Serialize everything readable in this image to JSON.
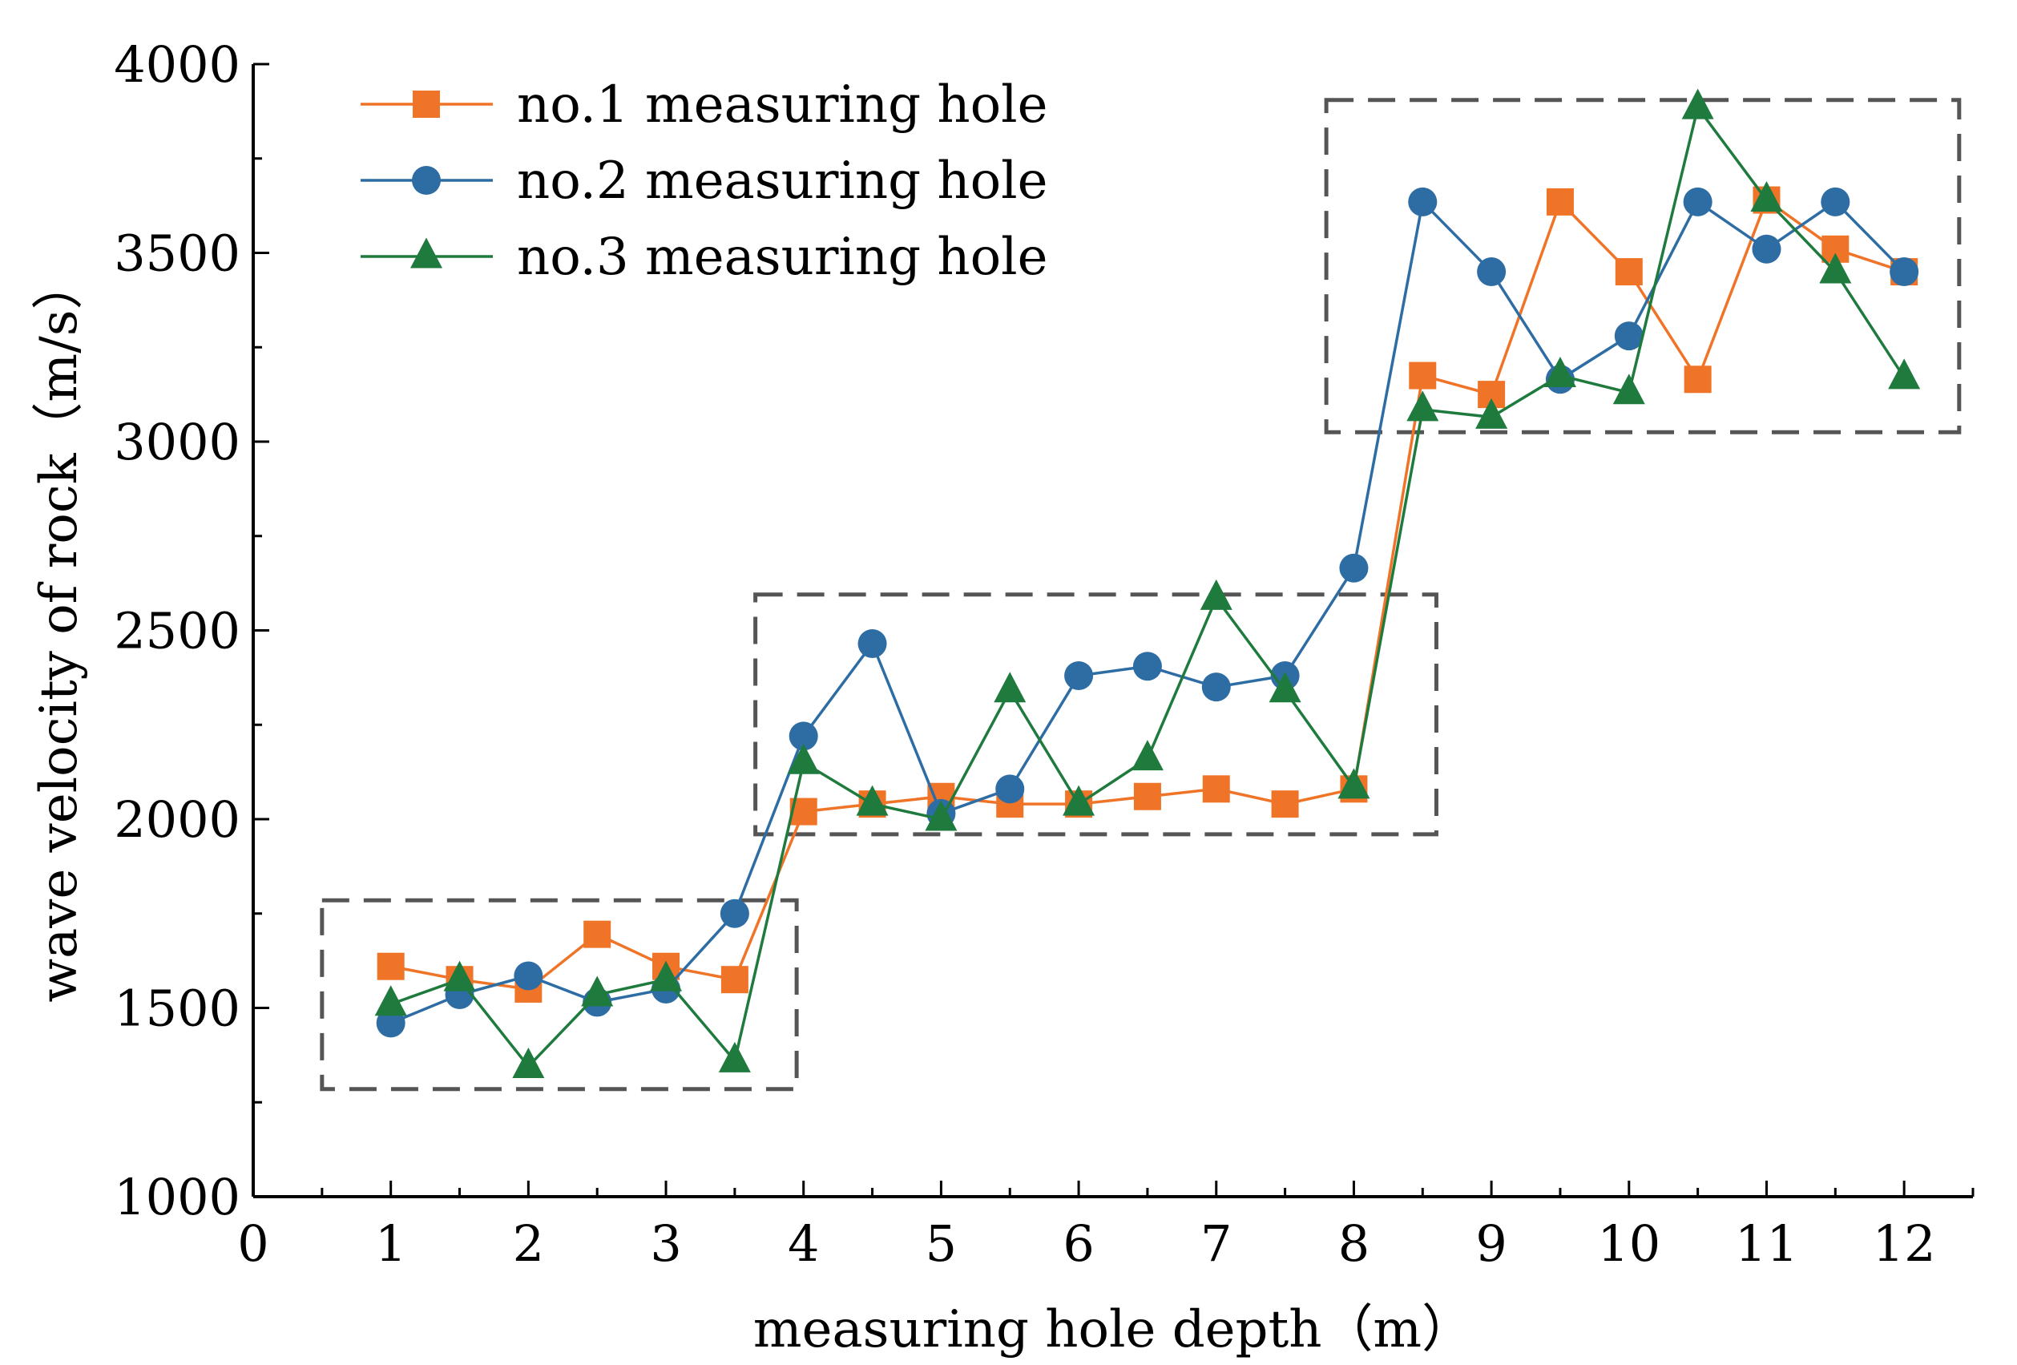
{
  "chart_data": {
    "type": "line",
    "xlabel": "measuring hole depth（m）",
    "ylabel": "wave velocity of rock（m/s）",
    "xlim": [
      0,
      12.5
    ],
    "ylim": [
      1000,
      4000
    ],
    "xticks": [
      0,
      1,
      2,
      3,
      4,
      5,
      6,
      7,
      8,
      9,
      10,
      11,
      12
    ],
    "yticks": [
      1000,
      1500,
      2000,
      2500,
      3000,
      3500,
      4000
    ],
    "legend_position": "top-left",
    "grid": false,
    "x": [
      1,
      1.5,
      2,
      2.5,
      3,
      3.5,
      4,
      4.5,
      5,
      5.5,
      6,
      6.5,
      7,
      7.5,
      8,
      8.5,
      9,
      9.5,
      10,
      10.5,
      11,
      11.5,
      12
    ],
    "series": [
      {
        "name": "no.1 measuring hole",
        "color": "#F07427",
        "marker": "square",
        "values": [
          1610,
          1575,
          1550,
          1695,
          1610,
          1575,
          2020,
          2040,
          2060,
          2040,
          2040,
          2060,
          2080,
          2040,
          2080,
          3175,
          3125,
          3635,
          3450,
          3165,
          3640,
          3510,
          3450
        ]
      },
      {
        "name": "no.2 measuring hole",
        "color": "#2E6DA4",
        "marker": "circle",
        "values": [
          1460,
          1535,
          1585,
          1515,
          1550,
          1750,
          2220,
          2465,
          2015,
          2080,
          2380,
          2405,
          2350,
          2380,
          2665,
          3635,
          3450,
          3165,
          3280,
          3635,
          3510,
          3635,
          3450
        ]
      },
      {
        "name": "no.3 measuring hole",
        "color": "#1F7A3E",
        "marker": "triangle",
        "values": [
          1510,
          1575,
          1345,
          1535,
          1575,
          1360,
          2150,
          2040,
          2000,
          2340,
          2040,
          2160,
          2585,
          2340,
          2085,
          3085,
          3065,
          3175,
          3130,
          3885,
          3640,
          3450,
          3170
        ]
      }
    ],
    "annotations": [
      {
        "type": "dashed-box",
        "x_range": [
          0.5,
          3.95
        ],
        "y_range": [
          1285,
          1785
        ]
      },
      {
        "type": "dashed-box",
        "x_range": [
          3.65,
          8.6
        ],
        "y_range": [
          1960,
          2595
        ]
      },
      {
        "type": "dashed-box",
        "x_range": [
          7.8,
          12.4
        ],
        "y_range": [
          3025,
          3905
        ]
      }
    ]
  }
}
